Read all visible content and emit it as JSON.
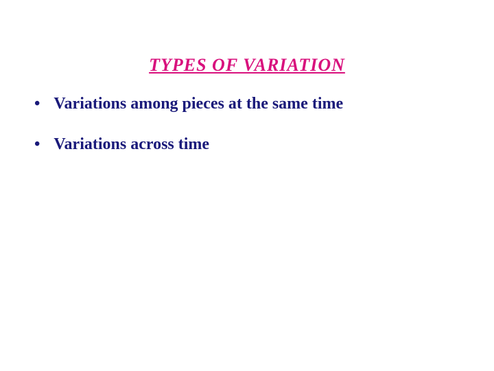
{
  "slide": {
    "title": "TYPES  OF  VARIATION",
    "title_color": "#d8117d",
    "title_fontsize": 26,
    "bullets": [
      {
        "text": "Variations among pieces at the same time"
      },
      {
        "text": "Variations across time"
      }
    ],
    "bullet_color": "#1a1a7a",
    "bullet_fontsize": 24,
    "bullet_marker": "•",
    "background_color": "#ffffff"
  }
}
